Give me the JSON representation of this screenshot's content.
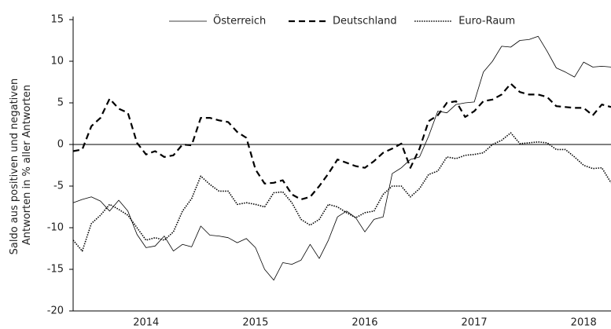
{
  "chart_data": {
    "type": "line",
    "y_label": [
      "Saldo aus positiven und negativen",
      "Antworten in % aller Antworten"
    ],
    "categories": [
      null,
      null,
      null,
      null,
      null,
      null,
      null,
      null,
      "2014",
      null,
      null,
      null,
      null,
      null,
      null,
      null,
      null,
      null,
      null,
      null,
      "2015",
      null,
      null,
      null,
      null,
      null,
      null,
      null,
      null,
      null,
      null,
      null,
      "2016",
      null,
      null,
      null,
      null,
      null,
      null,
      null,
      null,
      null,
      null,
      null,
      "2017",
      null,
      null,
      null,
      null,
      null,
      null,
      null,
      null,
      null,
      null,
      null,
      "2018",
      null,
      null,
      null
    ],
    "series": [
      {
        "name": "Österreich",
        "color": "#000000",
        "style": "solid",
        "values": [
          -7.0,
          -6.6,
          -6.3,
          -6.8,
          -8.0,
          -6.7,
          -8.0,
          -10.8,
          -12.4,
          -12.2,
          -11.0,
          -12.8,
          -12.0,
          -12.3,
          -9.8,
          -10.9,
          -11.0,
          -11.2,
          -11.8,
          -11.3,
          -12.4,
          -15.0,
          -16.3,
          -14.2,
          -14.4,
          -13.9,
          -12.0,
          -13.7,
          -11.5,
          -8.7,
          -8.0,
          -8.8,
          -10.5,
          -9.0,
          -8.7,
          -3.5,
          -2.8,
          -1.8,
          -1.5,
          1.0,
          4.0,
          3.8,
          4.8,
          5.0,
          5.1,
          8.7,
          10.0,
          11.8,
          11.7,
          12.5,
          12.6,
          13.0,
          11.2,
          9.2,
          8.7,
          8.1,
          9.9,
          9.3,
          9.4,
          9.3
        ]
      },
      {
        "name": "Deutschland",
        "color": "#000000",
        "style": "dashed",
        "values": [
          -0.8,
          -0.6,
          2.2,
          3.2,
          5.5,
          4.3,
          3.8,
          0.2,
          -1.2,
          -0.8,
          -1.5,
          -1.3,
          0.0,
          -0.1,
          3.2,
          3.2,
          2.9,
          2.7,
          1.5,
          0.8,
          -3.0,
          -4.7,
          -4.6,
          -4.3,
          -6.0,
          -6.6,
          -6.3,
          -5.0,
          -3.5,
          -1.8,
          -2.2,
          -2.6,
          -2.8,
          -2.0,
          -1.0,
          -0.5,
          0.1,
          -2.8,
          -0.5,
          2.8,
          3.5,
          5.0,
          5.2,
          3.3,
          4.0,
          5.2,
          5.4,
          6.0,
          7.3,
          6.3,
          6.0,
          6.0,
          5.7,
          4.6,
          4.5,
          4.4,
          4.4,
          3.5,
          4.8,
          4.5
        ]
      },
      {
        "name": "Euro-Raum",
        "color": "#000000",
        "style": "dotted",
        "values": [
          -11.5,
          -12.8,
          -9.5,
          -8.5,
          -7.2,
          -7.8,
          -8.5,
          -10.0,
          -11.5,
          -11.2,
          -11.5,
          -10.5,
          -8.0,
          -6.5,
          -3.8,
          -4.8,
          -5.6,
          -5.6,
          -7.2,
          -7.0,
          -7.2,
          -7.5,
          -5.8,
          -5.7,
          -7.0,
          -9.0,
          -9.7,
          -9.0,
          -7.2,
          -7.5,
          -8.2,
          -8.8,
          -8.2,
          -8.0,
          -6.0,
          -5.0,
          -5.0,
          -6.3,
          -5.3,
          -3.6,
          -3.2,
          -1.5,
          -1.7,
          -1.3,
          -1.2,
          -1.0,
          0.0,
          0.5,
          1.4,
          0.1,
          0.2,
          0.3,
          0.2,
          -0.6,
          -0.6,
          -1.5,
          -2.5,
          -2.9,
          -2.8,
          -4.6
        ]
      }
    ],
    "ylim": [
      -20,
      15
    ],
    "yticks": [
      -20,
      -15,
      -10,
      -5,
      0,
      5,
      10,
      15
    ],
    "zero_line": true,
    "grid": false,
    "legend": "upper center"
  }
}
